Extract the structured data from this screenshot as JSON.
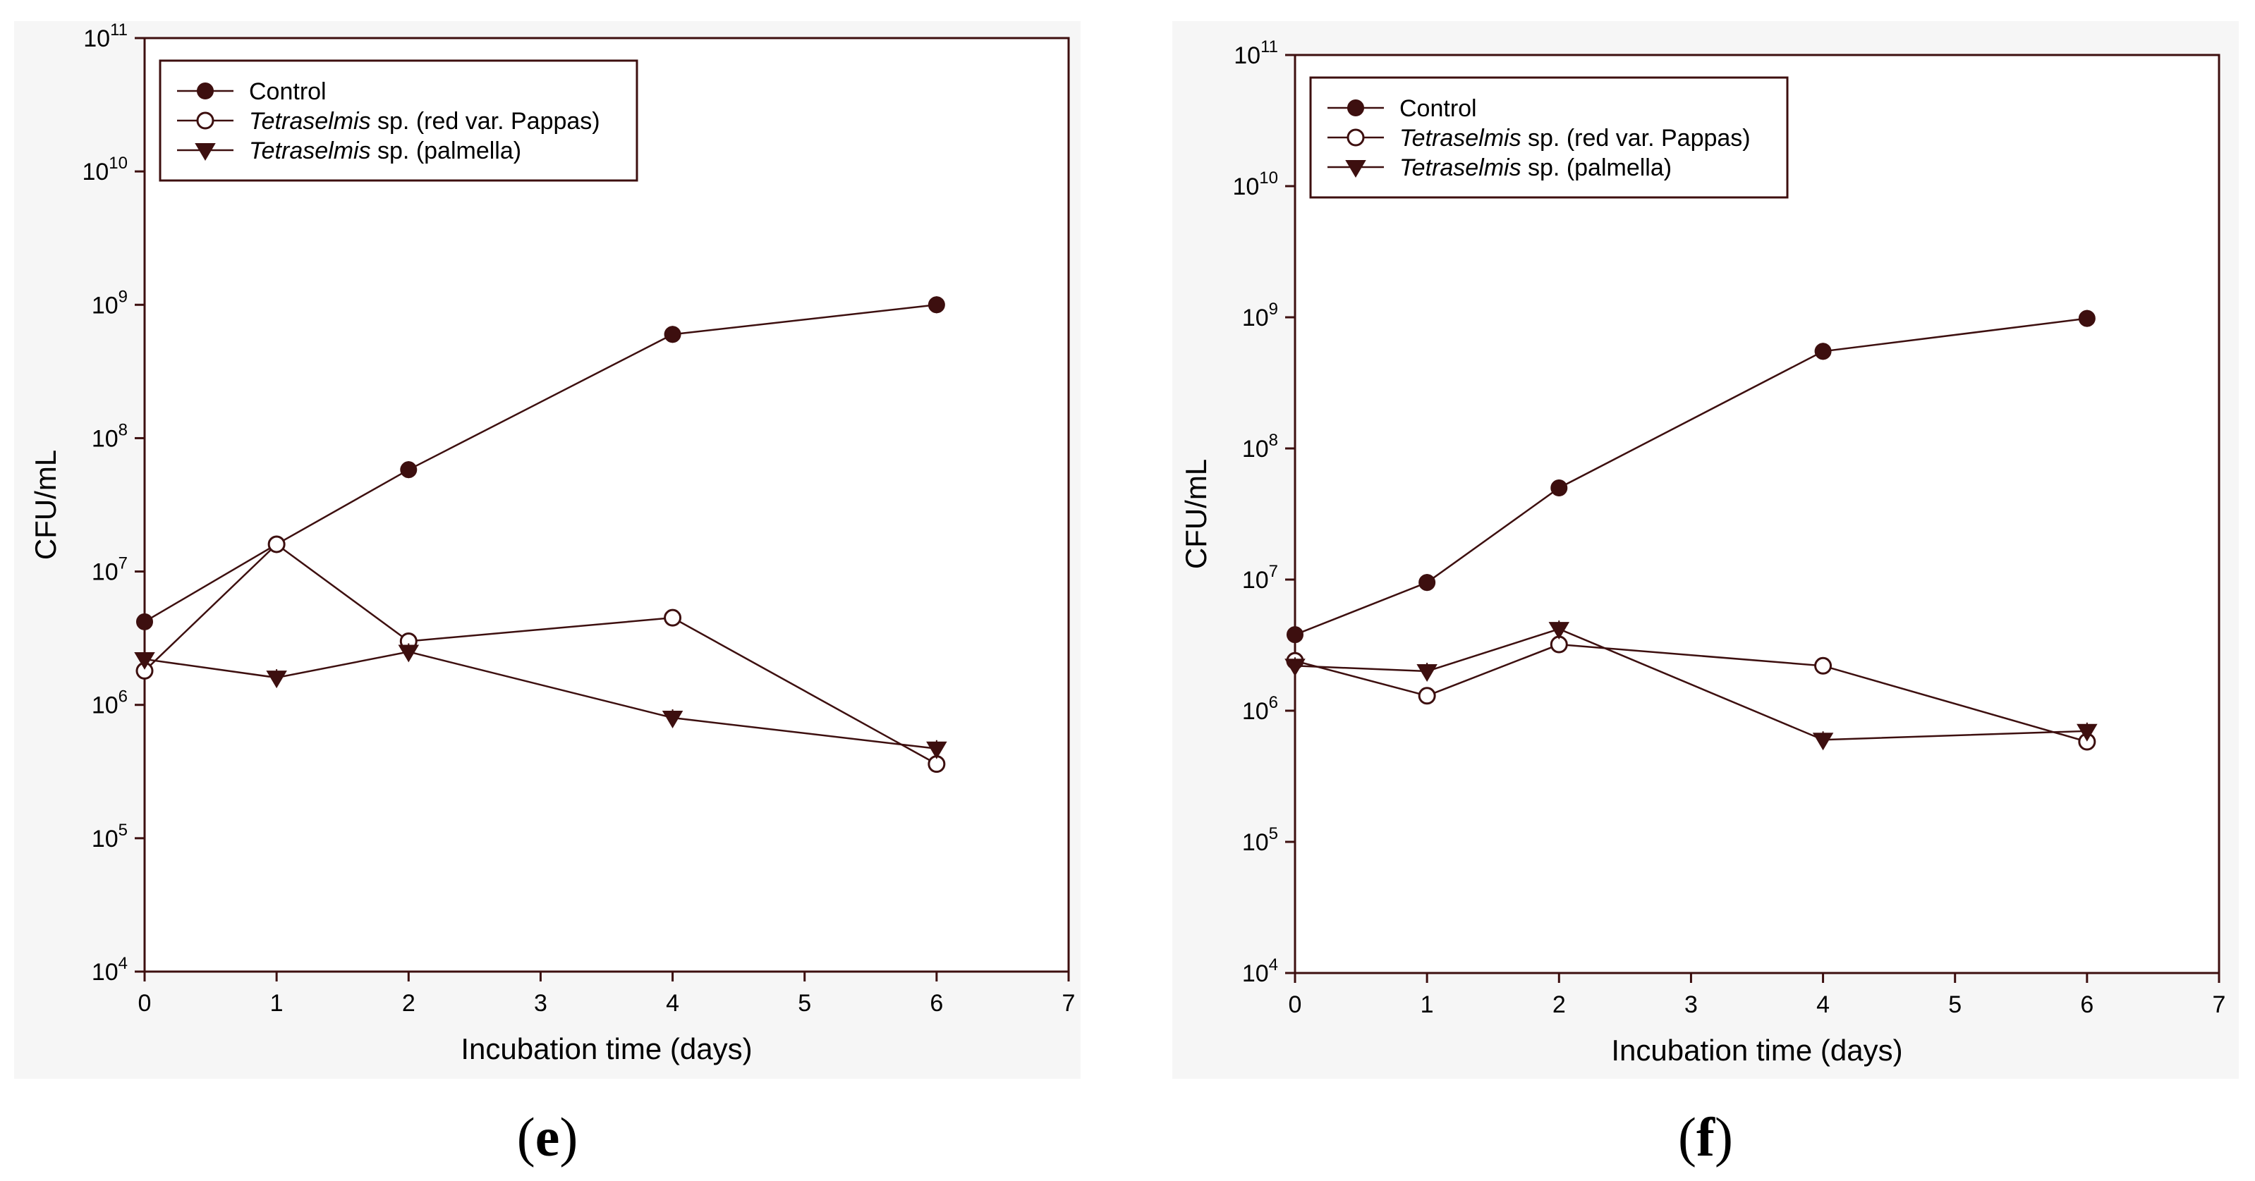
{
  "chart_data": [
    {
      "type": "line",
      "panel": "e",
      "xlabel": "Incubation time (days)",
      "ylabel": "CFU/mL",
      "xlim": [
        0,
        7
      ],
      "ylim": [
        10000,
        100000000000
      ],
      "yscale": "log",
      "xticks": [
        0,
        1,
        2,
        3,
        4,
        5,
        6,
        7
      ],
      "yticks": [
        {
          "base": "10",
          "exp": "4"
        },
        {
          "base": "10",
          "exp": "5"
        },
        {
          "base": "10",
          "exp": "6"
        },
        {
          "base": "10",
          "exp": "7"
        },
        {
          "base": "10",
          "exp": "8"
        },
        {
          "base": "10",
          "exp": "9"
        },
        {
          "base": "10",
          "exp": "10"
        },
        {
          "base": "10",
          "exp": "11"
        }
      ],
      "legend_position": "top-left",
      "series": [
        {
          "name": "Control",
          "name_italic": "",
          "name_rest": "Control",
          "marker": "filled-circle",
          "x": [
            0,
            1,
            2,
            4,
            6
          ],
          "y": [
            4200000,
            16000000,
            58000000,
            600000000,
            1000000000
          ]
        },
        {
          "name": "Tetraselmis sp. (red var. Pappas)",
          "name_italic": "Tetraselmis",
          "name_rest": " sp. (red var. Pappas)",
          "marker": "open-circle",
          "x": [
            0,
            1,
            2,
            4,
            6
          ],
          "y": [
            1800000,
            16000000,
            3000000,
            4500000,
            360000
          ]
        },
        {
          "name": "Tetraselmis sp. (palmella)",
          "name_italic": "Tetraselmis",
          "name_rest": " sp. (palmella)",
          "marker": "filled-triangle-down",
          "x": [
            0,
            1,
            2,
            4,
            6
          ],
          "y": [
            2200000,
            1600000,
            2500000,
            800000,
            470000
          ]
        }
      ]
    },
    {
      "type": "line",
      "panel": "f",
      "xlabel": "Incubation time (days)",
      "ylabel": "CFU/mL",
      "xlim": [
        0,
        7
      ],
      "ylim": [
        10000,
        100000000000
      ],
      "yscale": "log",
      "xticks": [
        0,
        1,
        2,
        3,
        4,
        5,
        6,
        7
      ],
      "yticks": [
        {
          "base": "10",
          "exp": "4"
        },
        {
          "base": "10",
          "exp": "5"
        },
        {
          "base": "10",
          "exp": "6"
        },
        {
          "base": "10",
          "exp": "7"
        },
        {
          "base": "10",
          "exp": "8"
        },
        {
          "base": "10",
          "exp": "9"
        },
        {
          "base": "10",
          "exp": "10"
        },
        {
          "base": "10",
          "exp": "11"
        }
      ],
      "legend_position": "top-left",
      "series": [
        {
          "name": "Control",
          "name_italic": "",
          "name_rest": "Control",
          "marker": "filled-circle",
          "x": [
            0,
            1,
            2,
            4,
            6
          ],
          "y": [
            3800000,
            9500000,
            50000000,
            550000000,
            980000000
          ]
        },
        {
          "name": "Tetraselmis sp. (red var. Pappas)",
          "name_italic": "Tetraselmis",
          "name_rest": " sp. (red var. Pappas)",
          "marker": "open-circle",
          "x": [
            0,
            1,
            2,
            4,
            6
          ],
          "y": [
            2400000,
            1300000,
            3200000,
            2200000,
            580000
          ]
        },
        {
          "name": "Tetraselmis sp. (palmella)",
          "name_italic": "Tetraselmis",
          "name_rest": " sp. (palmella)",
          "marker": "filled-triangle-down",
          "x": [
            0,
            1,
            2,
            4,
            6
          ],
          "y": [
            2200000,
            2000000,
            4200000,
            600000,
            700000
          ]
        }
      ]
    }
  ],
  "panel_labels": {
    "e": {
      "open": "(",
      "letter": "e",
      "close": ")"
    },
    "f": {
      "open": "(",
      "letter": "f",
      "close": ")"
    }
  },
  "colors": {
    "ink": "#3d0f0f",
    "text": "#000000",
    "panel_background": "#f6f6f6"
  }
}
